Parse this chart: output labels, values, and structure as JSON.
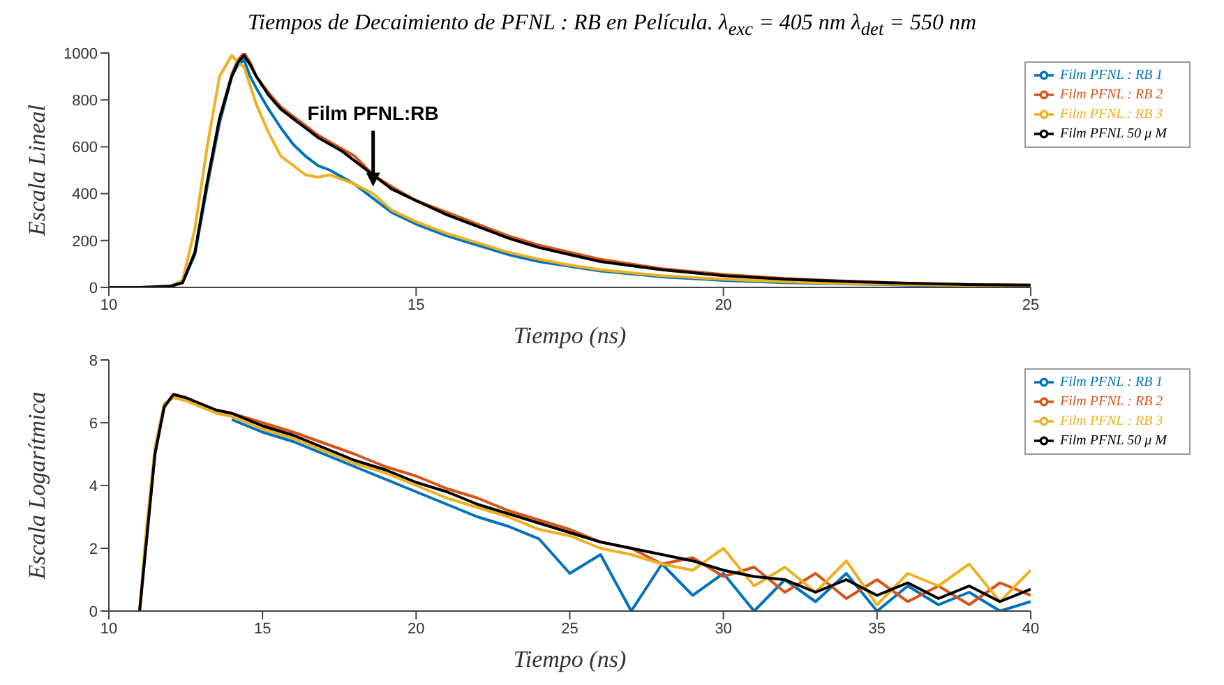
{
  "chart_data": [
    {
      "type": "line",
      "title": "Tiempos de Decaimiento de PFNL : RB en Película. λ$_{exc}$ = 405 nm λ$_{det}$ = 550 nm",
      "xlabel": "Tiempo (ns)",
      "ylabel": "Escala Lineal",
      "legend": "top right",
      "marker": "none",
      "grid": false,
      "x": [
        10,
        10.5,
        11,
        11.2,
        11.4,
        11.6,
        11.8,
        12.0,
        12.1,
        12.2,
        12.3,
        12.4,
        12.6,
        12.8,
        13.0,
        13.2,
        13.4,
        13.6,
        13.8,
        14.0,
        14.3,
        14.6,
        15.0,
        15.5,
        16,
        16.5,
        17,
        17.5,
        18,
        19,
        20,
        21,
        22,
        23,
        24,
        25
      ],
      "xlim": [
        10,
        25
      ],
      "xticks": [
        10,
        15,
        20,
        25
      ],
      "ylim": [
        0,
        1000
      ],
      "yticks": [
        0,
        200,
        400,
        600,
        800,
        1000
      ],
      "annotations": [
        {
          "text": "Film PFNL:RB",
          "x": 14.3,
          "y": 430
        }
      ],
      "series": [
        {
          "name": "Film PFNL : RB 1",
          "color": "#0072bd",
          "values": [
            null,
            null,
            5,
            20,
            140,
            430,
            700,
            900,
            950,
            970,
            900,
            850,
            760,
            680,
            610,
            560,
            520,
            500,
            470,
            440,
            380,
            320,
            270,
            220,
            180,
            140,
            110,
            90,
            70,
            45,
            30,
            20,
            15,
            10,
            8,
            5
          ]
        },
        {
          "name": "Film PFNL : RB 2",
          "color": "#d95319",
          "values": [
            null,
            null,
            null,
            null,
            null,
            440,
            720,
            910,
            970,
            1000,
            960,
            900,
            830,
            770,
            730,
            690,
            650,
            620,
            590,
            560,
            480,
            430,
            370,
            320,
            270,
            220,
            180,
            150,
            120,
            80,
            55,
            38,
            27,
            18,
            12,
            10
          ]
        },
        {
          "name": "Film PFNL : RB 3",
          "color": "#edb120",
          "values": [
            0,
            0,
            5,
            30,
            250,
            600,
            900,
            990,
            960,
            940,
            860,
            780,
            660,
            560,
            520,
            480,
            470,
            480,
            460,
            440,
            400,
            330,
            280,
            230,
            190,
            150,
            120,
            95,
            75,
            50,
            35,
            24,
            16,
            12,
            8,
            6
          ]
        },
        {
          "name": "Film PFNL 50 μ M",
          "color": "#000000",
          "values": [
            0,
            0,
            5,
            20,
            150,
            450,
            720,
            900,
            960,
            990,
            950,
            900,
            820,
            760,
            720,
            680,
            640,
            610,
            580,
            540,
            480,
            420,
            370,
            310,
            260,
            210,
            170,
            140,
            110,
            75,
            50,
            35,
            25,
            18,
            12,
            10
          ]
        }
      ]
    },
    {
      "type": "line",
      "xlabel": "Tiempo (ns)",
      "ylabel": "Escala Logarítmica",
      "legend": "top right",
      "marker": "none",
      "grid": false,
      "x": [
        11,
        11.2,
        11.5,
        11.8,
        12.1,
        12.5,
        13,
        13.5,
        14,
        15,
        16,
        17,
        18,
        19,
        20,
        21,
        22,
        23,
        24,
        25,
        26,
        27,
        28,
        29,
        30,
        31,
        32,
        33,
        34,
        35,
        36,
        37,
        38,
        39,
        40
      ],
      "xlim": [
        10,
        40
      ],
      "xticks": [
        10,
        15,
        20,
        25,
        30,
        35,
        40
      ],
      "ylim": [
        0,
        8
      ],
      "yticks": [
        0,
        2,
        4,
        6,
        8
      ],
      "series": [
        {
          "name": "Film PFNL : RB 1",
          "color": "#0072bd",
          "values": [
            null,
            null,
            null,
            null,
            null,
            null,
            null,
            null,
            6.1,
            5.7,
            5.4,
            5.0,
            4.6,
            4.2,
            3.8,
            3.4,
            3.0,
            2.7,
            2.3,
            1.2,
            1.8,
            0,
            1.5,
            0.5,
            1.2,
            0,
            1.0,
            0.3,
            1.2,
            0,
            0.8,
            0.2,
            0.6,
            0,
            0.3
          ]
        },
        {
          "name": "Film PFNL : RB 2",
          "color": "#d95319",
          "values": [
            0,
            2,
            5,
            6.5,
            6.9,
            6.8,
            6.6,
            6.4,
            6.3,
            6.0,
            5.7,
            5.35,
            5.0,
            4.6,
            4.3,
            3.9,
            3.6,
            3.2,
            2.9,
            2.6,
            2.2,
            2.0,
            1.5,
            1.7,
            1.1,
            1.4,
            0.6,
            1.2,
            0.4,
            1.0,
            0.3,
            0.8,
            0.2,
            0.9,
            0.5
          ]
        },
        {
          "name": "Film PFNL : RB 3",
          "color": "#edb120",
          "values": [
            0,
            2.4,
            5.2,
            6.6,
            6.8,
            6.7,
            6.5,
            6.3,
            6.2,
            5.8,
            5.5,
            5.1,
            4.7,
            4.4,
            4.0,
            3.6,
            3.3,
            3.0,
            2.6,
            2.4,
            2.0,
            1.8,
            1.5,
            1.3,
            2.0,
            0.8,
            1.4,
            0.6,
            1.6,
            0.2,
            1.2,
            0.8,
            1.5,
            0.3,
            1.3
          ]
        },
        {
          "name": "Film PFNL 50 μ M",
          "color": "#000000",
          "values": [
            0,
            2,
            5,
            6.5,
            6.9,
            6.8,
            6.6,
            6.4,
            6.3,
            5.9,
            5.6,
            5.2,
            4.8,
            4.5,
            4.1,
            3.8,
            3.4,
            3.1,
            2.8,
            2.5,
            2.2,
            2.0,
            1.8,
            1.6,
            1.3,
            1.1,
            1.0,
            0.6,
            1.0,
            0.5,
            0.9,
            0.4,
            0.8,
            0.3,
            0.7
          ]
        }
      ]
    }
  ]
}
